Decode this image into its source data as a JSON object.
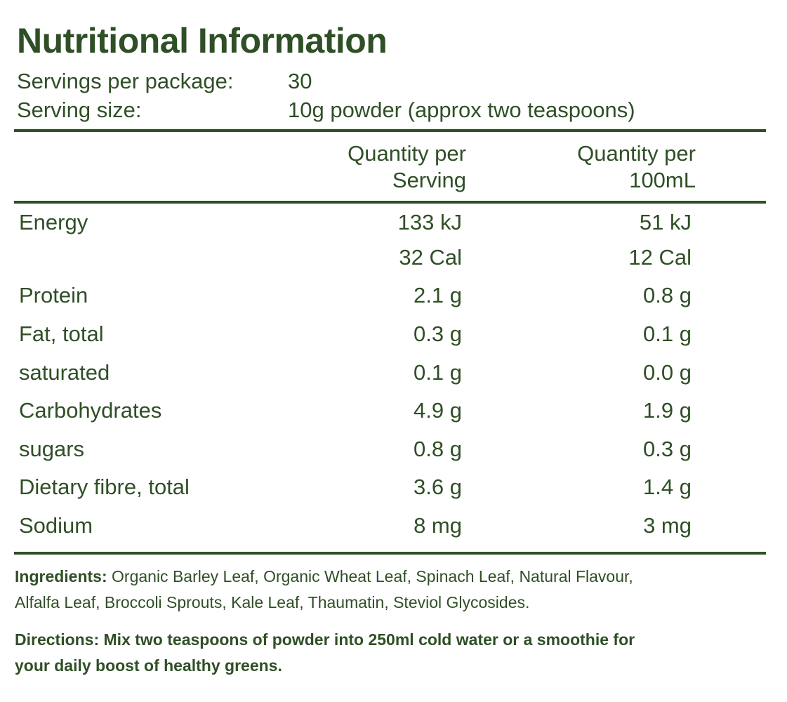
{
  "title": "Nutritional Information",
  "servings": {
    "label": "Servings per package:",
    "value": "30"
  },
  "serving_size": {
    "label": "Serving size:",
    "value": "10g powder (approx two teaspoons)"
  },
  "columns": {
    "per_serving": [
      "Quantity per",
      "Serving"
    ],
    "per_100ml": [
      "Quantity per",
      "100mL"
    ]
  },
  "rows": [
    {
      "name": "Energy",
      "serving": "133 kJ",
      "per100": "51 kJ"
    },
    {
      "name": "",
      "serving": "32 Cal",
      "per100": "12 Cal"
    },
    {
      "name": "Protein",
      "serving": "2.1 g",
      "per100": "0.8 g"
    },
    {
      "name": "Fat, total",
      "serving": "0.3 g",
      "per100": "0.1 g"
    },
    {
      "name": "saturated",
      "serving": "0.1 g",
      "per100": "0.0 g"
    },
    {
      "name": "Carbohydrates",
      "serving": "4.9 g",
      "per100": "1.9 g"
    },
    {
      "name": "sugars",
      "serving": "0.8 g",
      "per100": "0.3 g"
    },
    {
      "name": "Dietary fibre, total",
      "serving": "3.6 g",
      "per100": "1.4 g"
    },
    {
      "name": "Sodium",
      "serving": "8 mg",
      "per100": "3 mg"
    }
  ],
  "ingredients": {
    "label": "Ingredients:",
    "line1": "Organic Barley Leaf, Organic Wheat Leaf, Spinach Leaf, Natural Flavour,",
    "line2": "Alfalfa Leaf, Broccoli Sprouts, Kale Leaf, Thaumatin, Steviol Glycosides."
  },
  "directions": {
    "line1": "Directions: Mix two teaspoons of powder into 250ml cold water or a smoothie for",
    "line2": "your daily boost of healthy greens."
  }
}
